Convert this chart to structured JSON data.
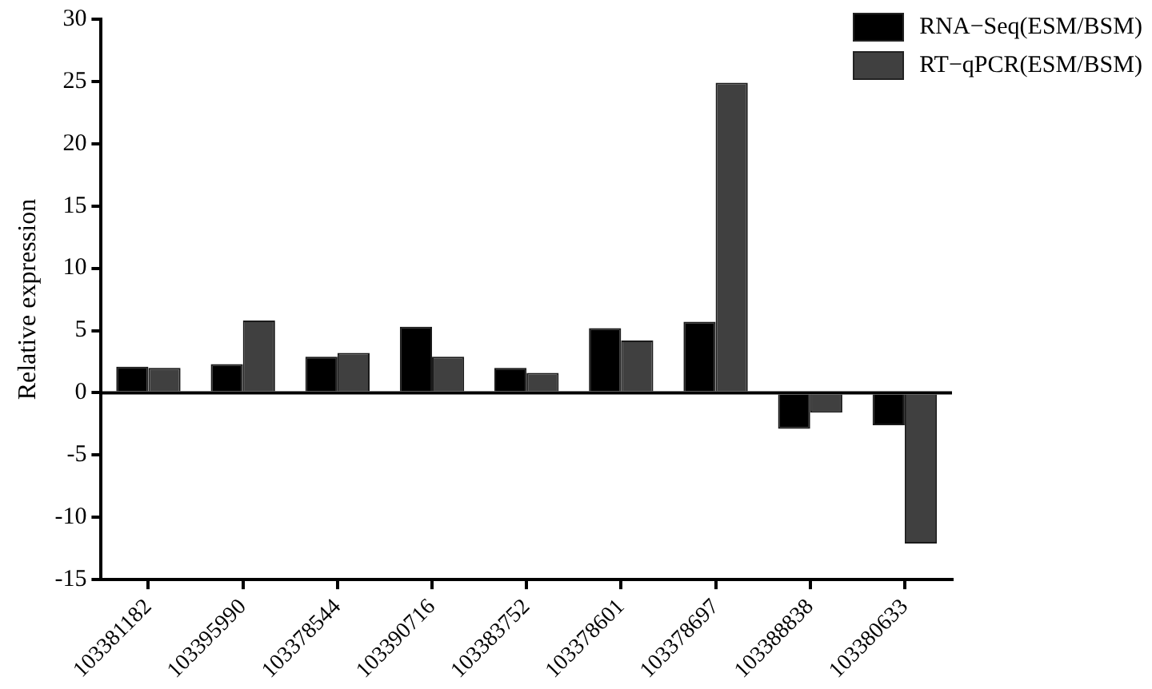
{
  "chart_data": {
    "type": "bar",
    "ylabel": "Relative expression",
    "categories": [
      "103381182",
      "103395990",
      "103378544",
      "103390716",
      "103383752",
      "103378601",
      "103378697",
      "103388838",
      "103380633"
    ],
    "series": [
      {
        "name": "RNA−Seq(ESM/BSM)",
        "color": "#000000",
        "values": [
          2.1,
          2.3,
          2.9,
          5.3,
          2,
          5.2,
          5.7,
          -2.9,
          -2.6
        ]
      },
      {
        "name": "RT−qPCR(ESM/BSM)",
        "color": "#404040",
        "values": [
          2,
          5.8,
          3.2,
          2.9,
          1.6,
          4.2,
          24.9,
          -1.6,
          -12.1
        ]
      }
    ],
    "ylim": [
      -15,
      30
    ],
    "yticks": [
      -15,
      -10,
      -5,
      0,
      5,
      10,
      15,
      20,
      25,
      30
    ],
    "ref_lines": [
      {
        "axis": "y",
        "value": 0,
        "color": "#000000"
      }
    ],
    "legend": "top right"
  }
}
